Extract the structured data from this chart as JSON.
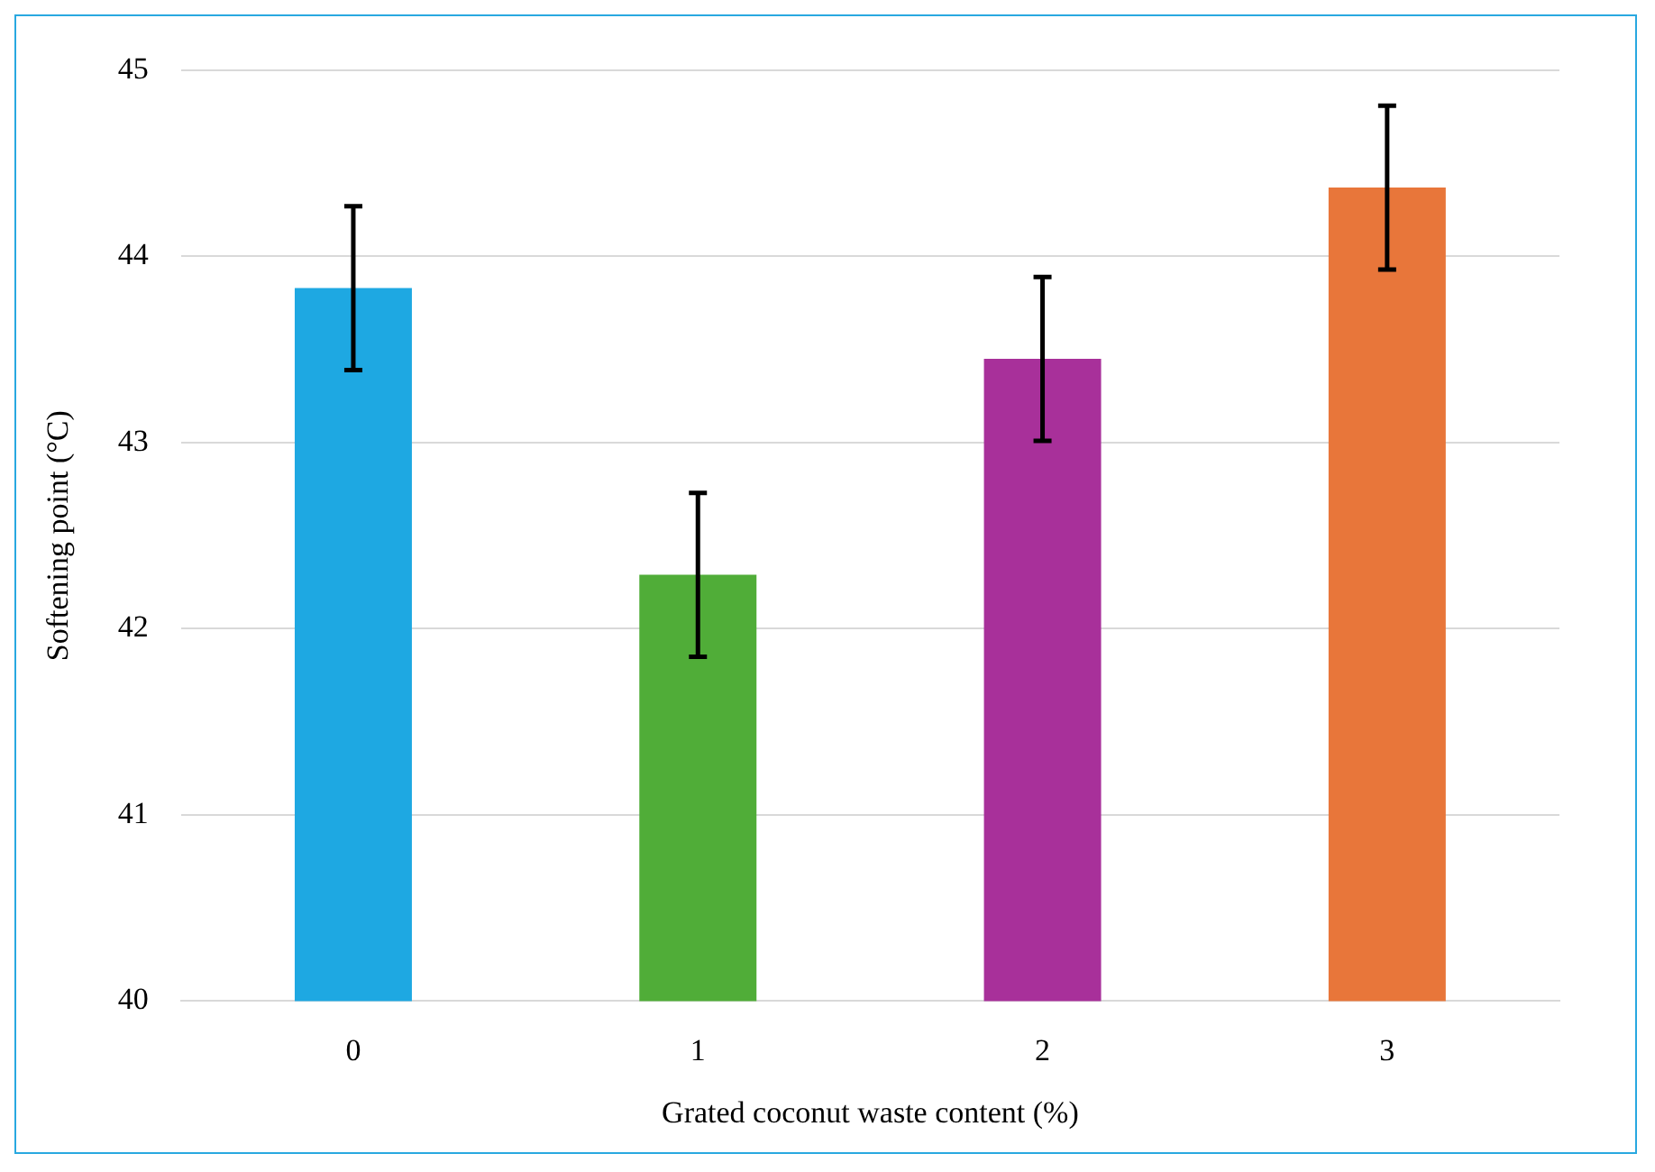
{
  "chart_data": {
    "type": "bar",
    "xlabel": "Grated coconut waste content (%)",
    "ylabel": "Softening point (°C)",
    "categories": [
      "0",
      "1",
      "2",
      "3"
    ],
    "values": [
      43.83,
      42.29,
      43.45,
      44.37
    ],
    "errors": [
      0.44,
      0.44,
      0.44,
      0.44
    ],
    "colors": [
      "#1ea8e2",
      "#50ad38",
      "#a8309a",
      "#e8763a"
    ],
    "ylim": [
      40,
      45
    ],
    "yticks": [
      40,
      41,
      42,
      43,
      44,
      45
    ],
    "grid": "y",
    "legend": false
  }
}
